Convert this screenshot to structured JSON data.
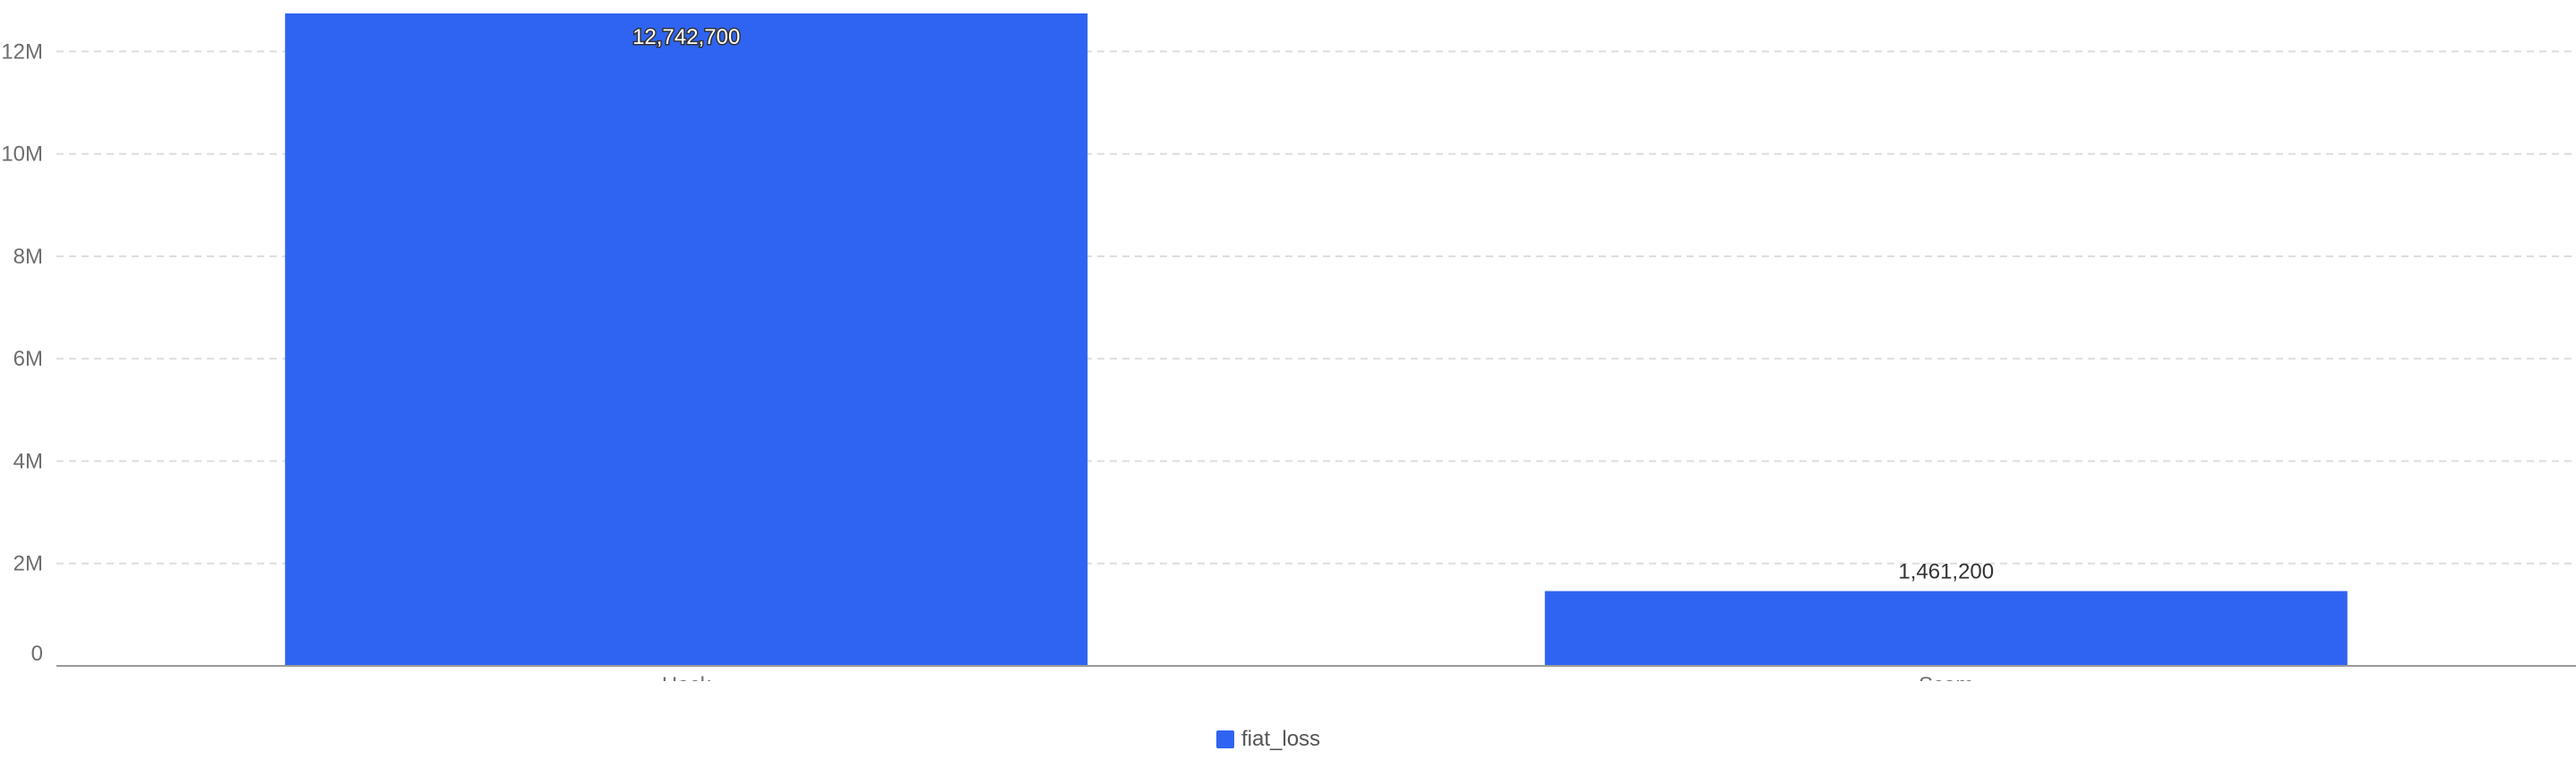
{
  "chart_data": {
    "type": "bar",
    "categories": [
      "Hack",
      "Scam"
    ],
    "series": [
      {
        "name": "fiat_loss",
        "values": [
          12742700,
          1461200
        ]
      }
    ],
    "data_labels": [
      "12,742,700",
      "1,461,200"
    ],
    "y_ticks": [
      0,
      2000000,
      4000000,
      6000000,
      8000000,
      10000000,
      12000000
    ],
    "y_tick_labels": [
      "0",
      "2M",
      "4M",
      "6M",
      "8M",
      "10M",
      "12M"
    ],
    "ylim": [
      0,
      12742700
    ],
    "grid": "horizontal-dashed",
    "legend_position": "bottom-center",
    "colors": {
      "bar": "#2f64f2",
      "grid": "#dedede",
      "axis": "#9a9a9a"
    }
  }
}
